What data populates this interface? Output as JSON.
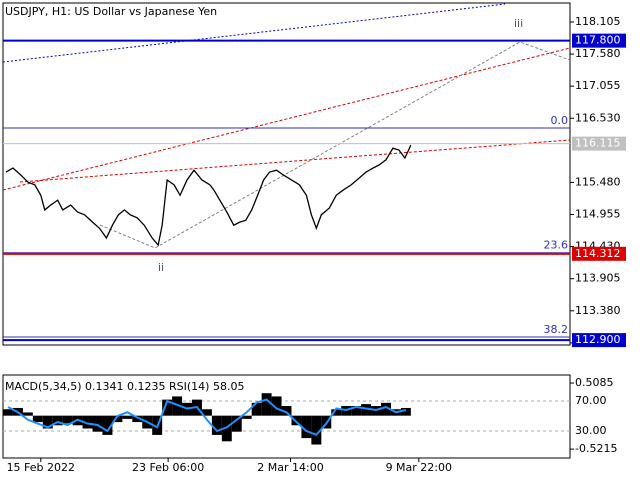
{
  "chart_data": [
    {
      "type": "line",
      "title": "USDJPY, H1:  US Dollar vs Japanese Yen",
      "xlim": [
        0,
        570
      ],
      "xticks": [
        {
          "value": 38,
          "label": "15 Feb 2022"
        },
        {
          "value": 166,
          "label": "23 Feb 06:00"
        },
        {
          "value": 289,
          "label": "2 Mar 14:00"
        },
        {
          "value": 418,
          "label": "9 Mar 22:00"
        }
      ],
      "ylim": [
        112.82,
        118.465
      ],
      "yticks": [
        118.105,
        {
          "value": 117.58,
          "label": "117.580"
        },
        117.055,
        {
          "value": 116.53,
          "label": "116.530"
        },
        {
          "value": 115.48,
          "label": "115.480"
        },
        114.955,
        {
          "value": 114.43,
          "label": "114.430"
        },
        113.905,
        {
          "value": 113.38,
          "label": "113.380"
        },
        112.855
      ],
      "series": [
        {
          "color": "#000000",
          "x": [
            3,
            10,
            18,
            25,
            32,
            38,
            42,
            48,
            55,
            60,
            68,
            75,
            82,
            90,
            97,
            104,
            110,
            116,
            122,
            128,
            135,
            142,
            150,
            156,
            160,
            165,
            172,
            178,
            185,
            192,
            200,
            208,
            212,
            218,
            225,
            232,
            238,
            244,
            250,
            256,
            262,
            268,
            275,
            282,
            290,
            298,
            305,
            310,
            315,
            320,
            328,
            335,
            342,
            350,
            358,
            365,
            372,
            378,
            385,
            392,
            398,
            404,
            410
          ],
          "values": [
            115.65,
            115.715,
            115.6,
            115.485,
            115.44,
            115.27,
            115.03,
            115.11,
            115.19,
            115.03,
            115.11,
            114.995,
            114.95,
            114.83,
            114.73,
            114.57,
            114.78,
            114.95,
            115.03,
            114.95,
            114.9,
            114.78,
            114.57,
            114.455,
            114.78,
            115.52,
            115.44,
            115.27,
            115.52,
            115.68,
            115.52,
            115.44,
            115.355,
            115.19,
            114.995,
            114.78,
            114.83,
            114.86,
            115.03,
            115.27,
            115.52,
            115.65,
            115.68,
            115.6,
            115.52,
            115.44,
            115.27,
            114.95,
            114.73,
            114.95,
            115.06,
            115.27,
            115.355,
            115.44,
            115.55,
            115.65,
            115.715,
            115.765,
            115.85,
            116.04,
            116.01,
            115.88,
            116.09
          ]
        }
      ],
      "price_lines": [
        {
          "value": 117.8,
          "label": "117.800",
          "color": "#0000cc"
        },
        {
          "value": 116.115,
          "label": "116.115",
          "color": "#c0c0c0"
        },
        {
          "value": 114.312,
          "label": "114.312",
          "color": "#dd0000"
        },
        {
          "value": 112.9,
          "label": "112.900",
          "color": "#0000cc"
        }
      ],
      "fib_levels": [
        {
          "value": 116.37,
          "label": "0.0"
        },
        {
          "value": 114.33,
          "label": "23.6"
        },
        {
          "value": 112.95,
          "label": "38.2"
        }
      ],
      "wave_labels": [
        "ii",
        "iii"
      ]
    },
    {
      "type": "macd",
      "title": "MACD(5,34,5) 0.1341 0.1235 RSI(14) 58.05",
      "xlim": [
        0,
        570
      ],
      "ylim": [
        -0.66,
        0.634
      ],
      "yticks": [
        0.5085,
        -0.5215
      ],
      "y2lim": [
        -6,
        104.7
      ],
      "y2ticks": [
        {
          "value": 70,
          "label": "70.00"
        },
        {
          "value": 30,
          "label": "30.00"
        }
      ],
      "x": [
        5,
        15,
        25,
        35,
        45,
        55,
        65,
        75,
        85,
        95,
        105,
        115,
        125,
        135,
        145,
        155,
        165,
        175,
        185,
        195,
        205,
        215,
        225,
        235,
        245,
        255,
        265,
        275,
        285,
        295,
        305,
        315,
        325,
        335,
        345,
        355,
        365,
        375,
        385,
        395,
        405
      ],
      "series": [
        {
          "color": "#000000",
          "values": [
            0.1,
            0.12,
            0.05,
            -0.1,
            -0.2,
            -0.15,
            -0.12,
            -0.15,
            -0.2,
            -0.25,
            -0.3,
            -0.1,
            -0.05,
            -0.1,
            -0.2,
            -0.3,
            0.25,
            0.3,
            0.2,
            0.25,
            0.1,
            -0.3,
            -0.4,
            -0.25,
            -0.05,
            0.2,
            0.35,
            0.3,
            0.15,
            -0.15,
            -0.35,
            -0.45,
            -0.2,
            0.1,
            0.15,
            0.15,
            0.18,
            0.15,
            0.2,
            0.1,
            0.12
          ]
        },
        {
          "color": "#1e90ff",
          "axis": "y2",
          "values": [
            62,
            55,
            45,
            40,
            35,
            42,
            38,
            45,
            40,
            38,
            30,
            50,
            55,
            48,
            42,
            35,
            70,
            65,
            60,
            62,
            45,
            30,
            35,
            45,
            55,
            68,
            72,
            60,
            55,
            42,
            30,
            25,
            40,
            60,
            58,
            62,
            60,
            58,
            62,
            55,
            58
          ]
        }
      ]
    }
  ]
}
